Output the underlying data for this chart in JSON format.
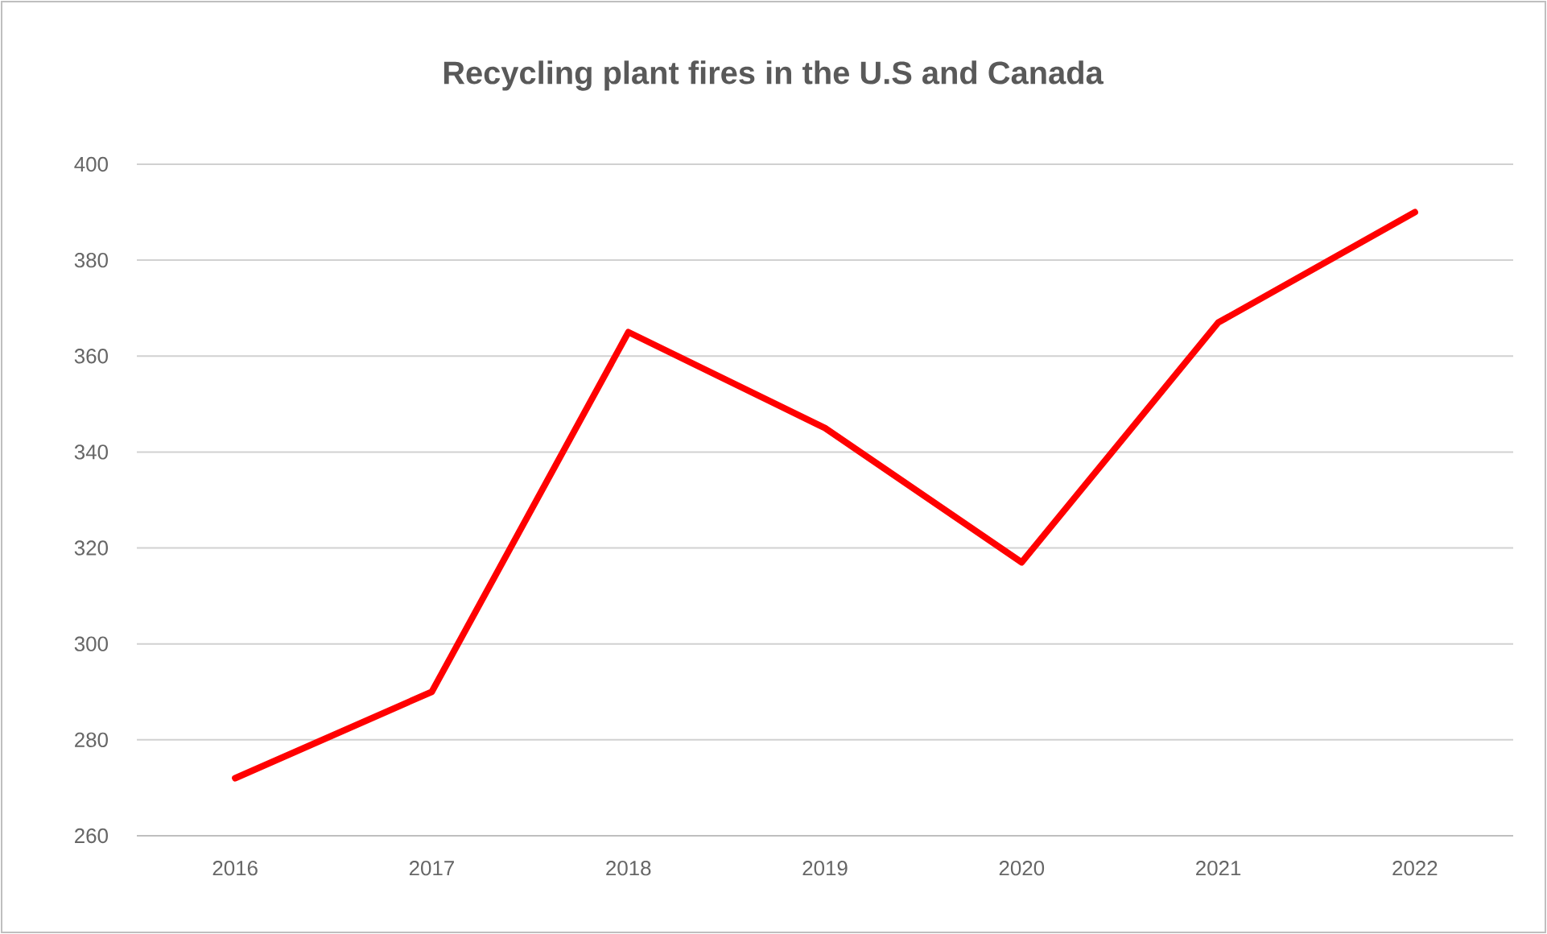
{
  "chart_data": {
    "type": "line",
    "title": "Recycling plant fires in the U.S and Canada",
    "categories": [
      "2016",
      "2017",
      "2018",
      "2019",
      "2020",
      "2021",
      "2022"
    ],
    "series": [
      {
        "color": "#ff0000",
        "values": [
          272,
          290,
          365,
          345,
          317,
          367,
          390
        ]
      }
    ],
    "ylim": [
      260,
      400
    ],
    "yticks": [
      260,
      280,
      300,
      320,
      340,
      360,
      380,
      400
    ],
    "grid": "y",
    "marker": "none",
    "line_style": "solid"
  }
}
